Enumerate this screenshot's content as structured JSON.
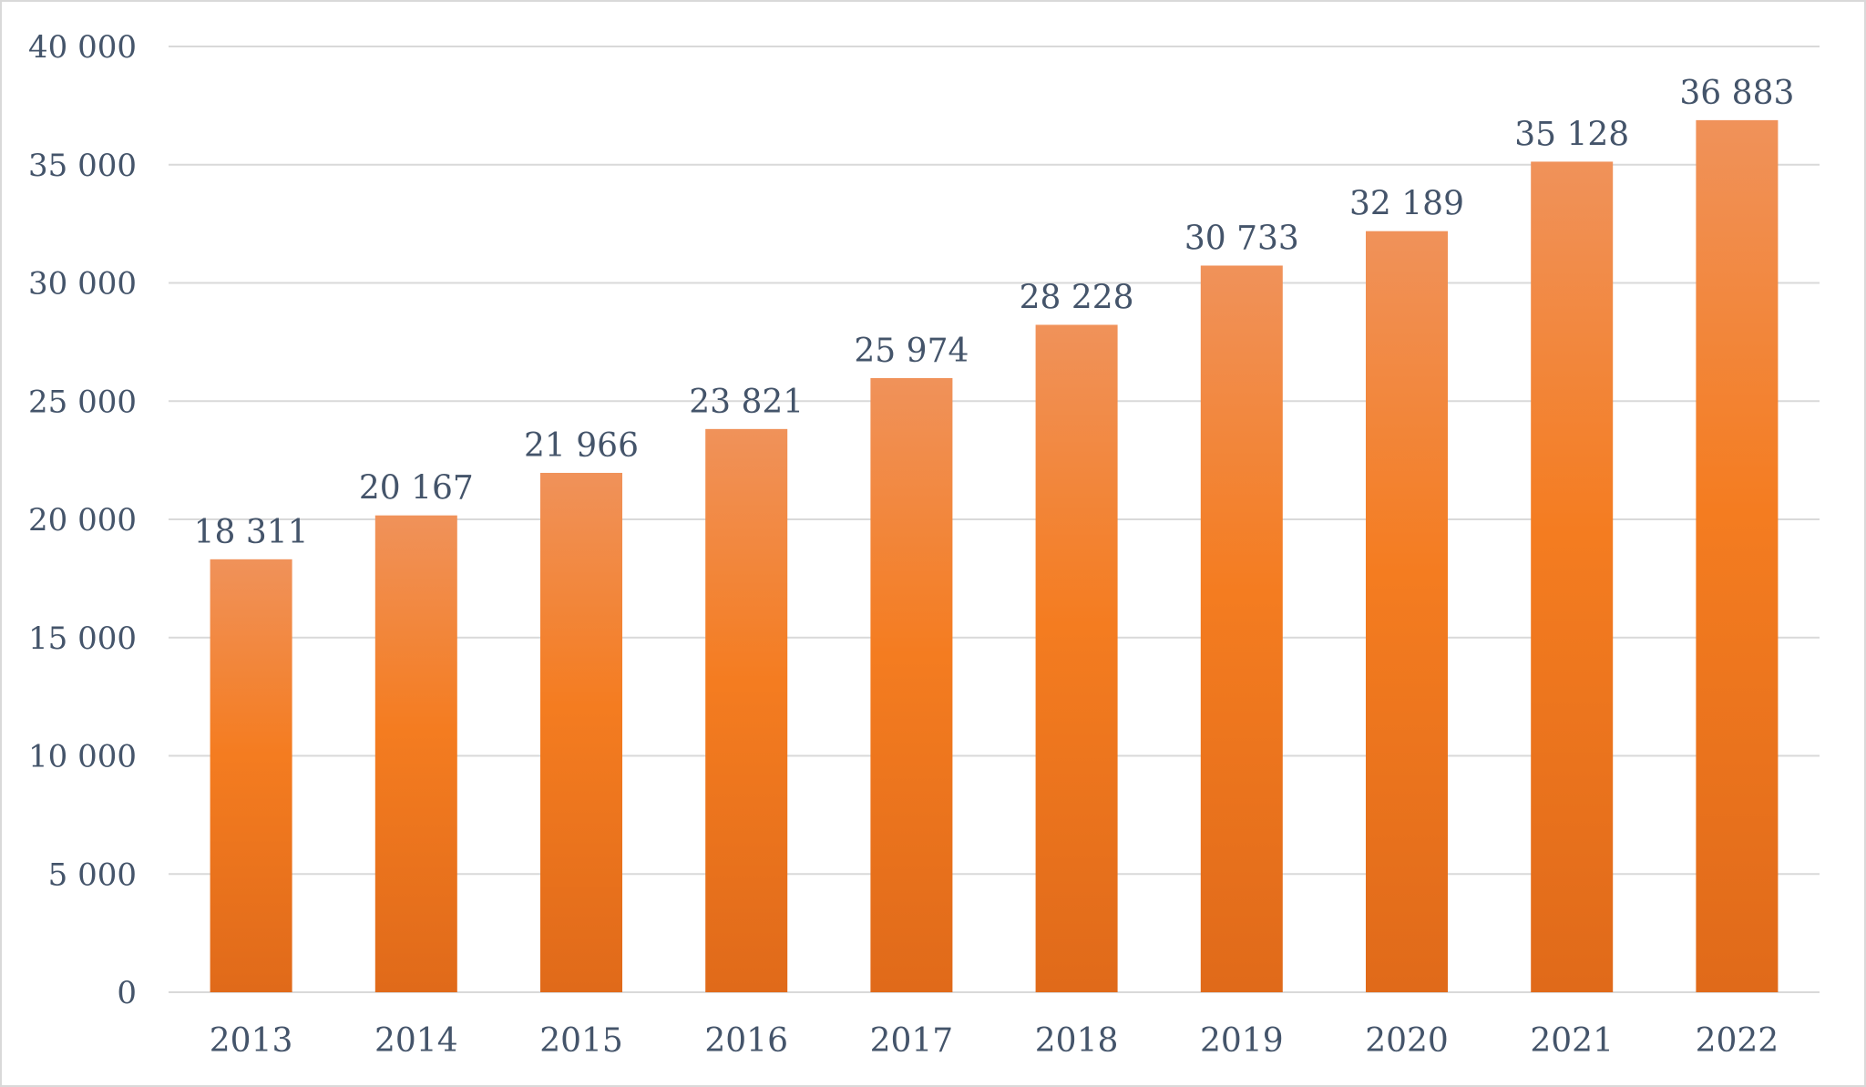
{
  "chart_data": {
    "type": "bar",
    "title": "",
    "xlabel": "",
    "ylabel": "",
    "categories": [
      "2013",
      "2014",
      "2015",
      "2016",
      "2017",
      "2018",
      "2019",
      "2020",
      "2021",
      "2022"
    ],
    "values": [
      18311,
      20167,
      21966,
      23821,
      25974,
      28228,
      30733,
      32189,
      35128,
      36883
    ],
    "value_labels": [
      "18 311",
      "20 167",
      "21 966",
      "23 821",
      "25 974",
      "28 228",
      "30 733",
      "32 189",
      "35 128",
      "36 883"
    ],
    "ylim": [
      0,
      40000
    ],
    "y_ticks": [
      0,
      5000,
      10000,
      15000,
      20000,
      25000,
      30000,
      35000,
      40000
    ],
    "y_tick_labels": [
      "0",
      "5 000",
      "10 000",
      "15 000",
      "20 000",
      "25 000",
      "30 000",
      "35 000",
      "40 000"
    ],
    "grid": true,
    "legend": "none",
    "colors": {
      "bar_top": "#f0925a",
      "bar_mid": "#f47c20",
      "bar_bottom": "#e06a1a",
      "text": "#44546a",
      "grid": "#d9d9d9"
    }
  }
}
